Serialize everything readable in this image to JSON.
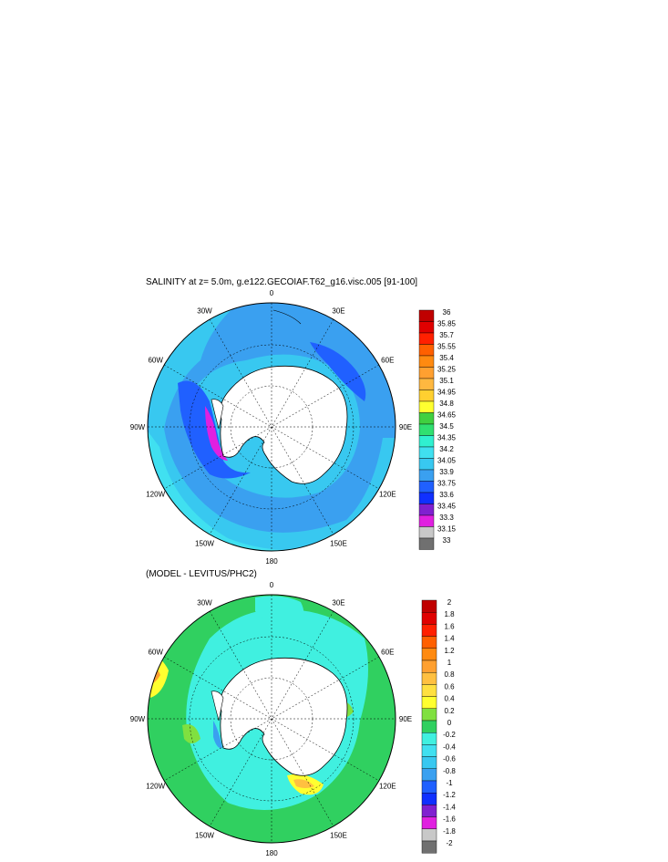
{
  "panel_top": {
    "title": "SALINITY at z=   5.0m, g.e122.GECOIAF.T62_g16.visc.005 [91-100]",
    "colorbar": {
      "labels": [
        "36",
        "35.85",
        "35.7",
        "35.55",
        "35.4",
        "35.25",
        "35.1",
        "34.95",
        "34.8",
        "34.65",
        "34.5",
        "34.35",
        "34.2",
        "34.05",
        "33.9",
        "33.75",
        "33.6",
        "33.45",
        "33.3",
        "33.15",
        "33"
      ],
      "colors": [
        "#c00000",
        "#e00000",
        "#ff2000",
        "#ff6000",
        "#ff8a10",
        "#ffa030",
        "#ffb840",
        "#ffd030",
        "#ffff30",
        "#40d040",
        "#30e070",
        "#30f0d0",
        "#40e0f0",
        "#38c8f0",
        "#3aa0f0",
        "#2060ff",
        "#1030ff",
        "#8020d0",
        "#e020e0",
        "#c8c8c8",
        "#707070"
      ]
    }
  },
  "panel_bottom": {
    "title": "(MODEL - LEVITUS/PHC2)",
    "colorbar": {
      "labels": [
        "2",
        "1.8",
        "1.6",
        "1.4",
        "1.2",
        "1",
        "0.8",
        "0.6",
        "0.4",
        "0.2",
        "0",
        "-0.2",
        "-0.4",
        "-0.6",
        "-0.8",
        "-1",
        "-1.2",
        "-1.4",
        "-1.6",
        "-1.8",
        "-2"
      ],
      "colors": [
        "#c00000",
        "#e00000",
        "#ff2000",
        "#ff6000",
        "#ff8a10",
        "#ffa030",
        "#ffc040",
        "#ffe040",
        "#ffff30",
        "#80e040",
        "#30d060",
        "#40f0e0",
        "#40e0f0",
        "#38c8f0",
        "#3aa0f0",
        "#2060ff",
        "#1030ff",
        "#8020d0",
        "#e020e0",
        "#c8c8c8",
        "#707070"
      ]
    }
  },
  "lon_labels": [
    "0",
    "30E",
    "60E",
    "90E",
    "120E",
    "150E",
    "180",
    "150W",
    "120W",
    "90W",
    "60W",
    "30W"
  ]
}
